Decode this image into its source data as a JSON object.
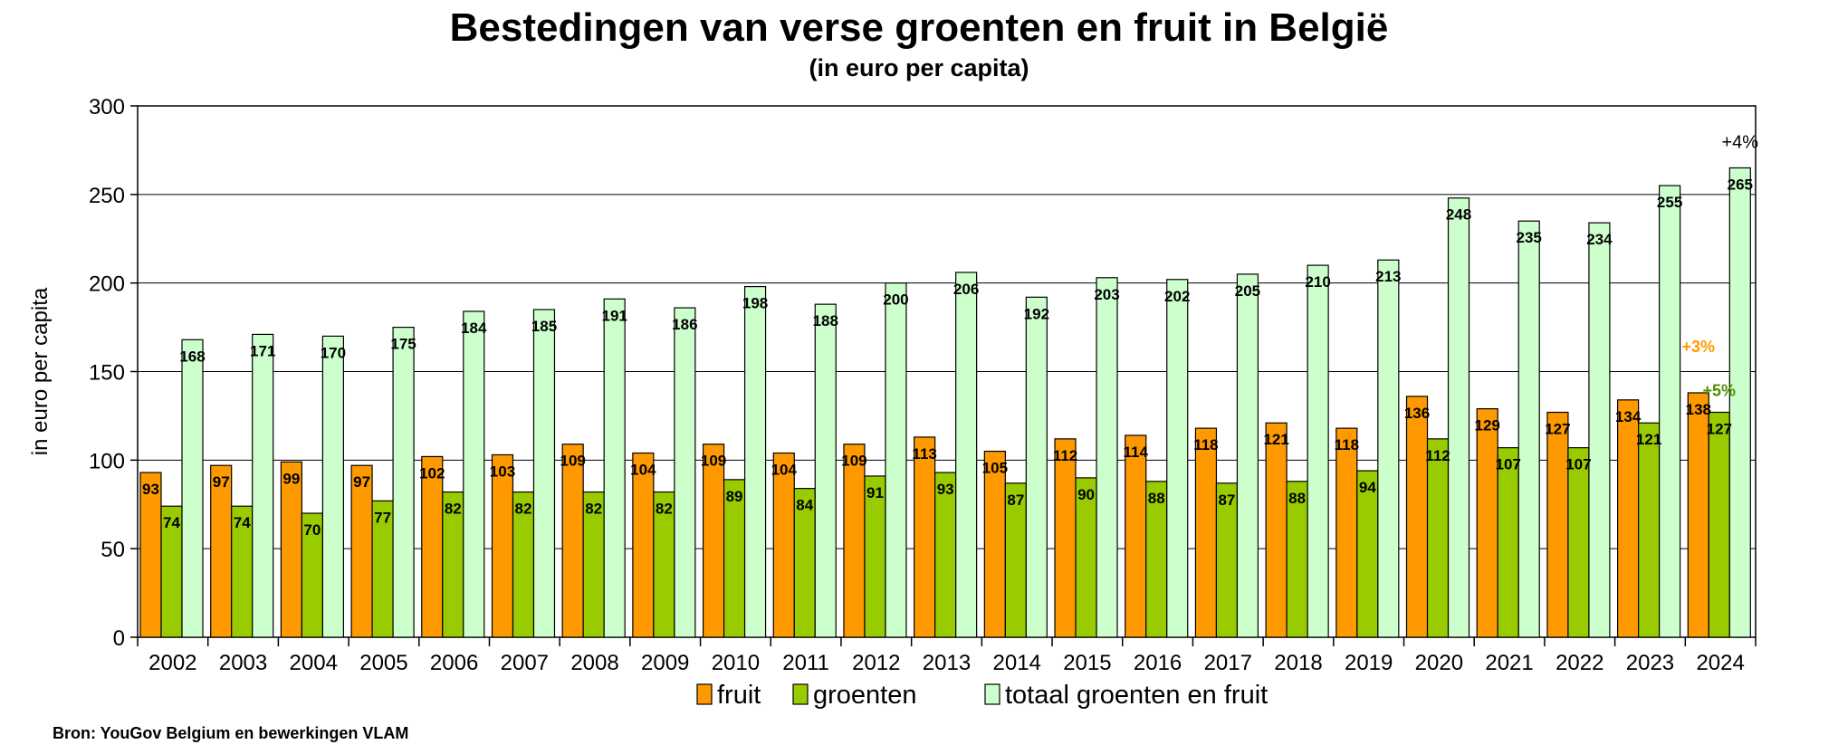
{
  "chart_data": {
    "type": "bar",
    "title": "Bestedingen van verse groenten en fruit in België",
    "subtitle": "(in euro per capita)",
    "ylabel": "in euro per capita",
    "xlabel": "",
    "ylim": [
      0,
      300
    ],
    "yticks": [
      0,
      50,
      100,
      150,
      200,
      250,
      300
    ],
    "grid": true,
    "legend_position": "bottom",
    "categories": [
      "2002",
      "2003",
      "2004",
      "2005",
      "2006",
      "2007",
      "2008",
      "2009",
      "2010",
      "2011",
      "2012",
      "2013",
      "2014",
      "2015",
      "2016",
      "2017",
      "2018",
      "2019",
      "2020",
      "2021",
      "2022",
      "2023",
      "2024"
    ],
    "series": [
      {
        "name": "fruit",
        "color": "#FF9900",
        "values": [
          93,
          97,
          99,
          97,
          102,
          103,
          109,
          104,
          109,
          104,
          109,
          113,
          105,
          112,
          114,
          118,
          121,
          118,
          136,
          129,
          127,
          134,
          138
        ]
      },
      {
        "name": "groenten",
        "color": "#99CC00",
        "values": [
          74,
          74,
          70,
          77,
          82,
          82,
          82,
          82,
          89,
          84,
          91,
          93,
          87,
          90,
          88,
          87,
          88,
          94,
          112,
          107,
          107,
          121,
          127
        ]
      },
      {
        "name": "totaal groenten en fruit",
        "color": "#CCFFCC",
        "values": [
          168,
          171,
          170,
          175,
          184,
          185,
          191,
          186,
          198,
          188,
          200,
          206,
          192,
          203,
          202,
          205,
          210,
          213,
          248,
          235,
          234,
          255,
          265
        ]
      }
    ],
    "annotations": [
      {
        "text": "+4%",
        "series": "totaal groenten en fruit",
        "category": "2024",
        "color": "#000000"
      },
      {
        "text": "+3%",
        "series": "fruit",
        "category": "2024",
        "color": "#FF9900"
      },
      {
        "text": "+5%",
        "series": "groenten",
        "category": "2024",
        "color": "#4E8F00"
      }
    ]
  },
  "source": "Bron: YouGov Belgium en bewerkingen VLAM"
}
